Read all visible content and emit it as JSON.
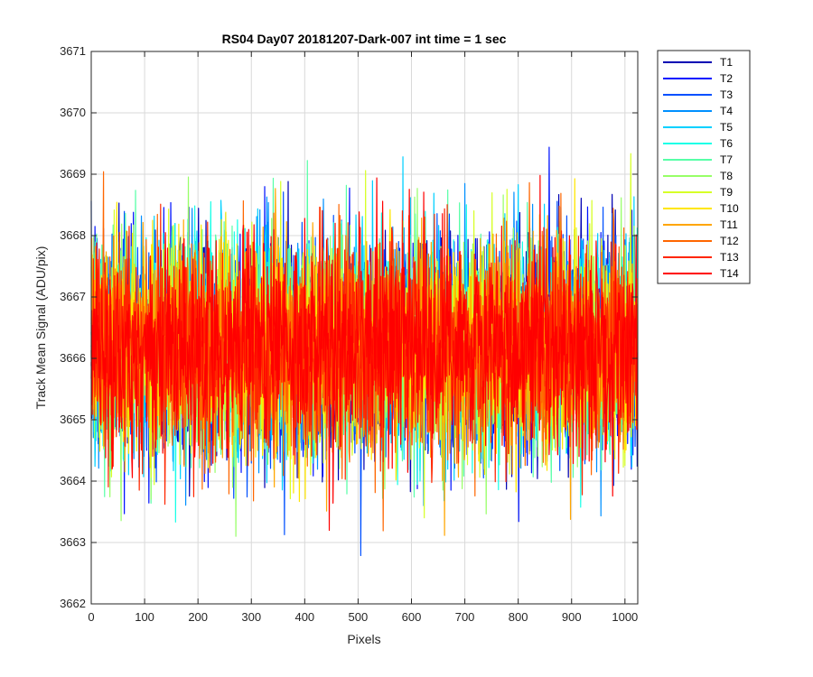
{
  "chart_data": {
    "type": "line",
    "title": "RS04 Day07 20181207-Dark-007 int time = 1 sec",
    "xlabel": "Pixels",
    "ylabel": "Track Mean Signal (ADU/pix)",
    "xlim": [
      0,
      1024
    ],
    "ylim": [
      3662,
      3671
    ],
    "xticks": [
      "0",
      "100",
      "200",
      "300",
      "400",
      "500",
      "600",
      "700",
      "800",
      "900",
      "1000"
    ],
    "yticks": [
      "3662",
      "3663",
      "3664",
      "3665",
      "3666",
      "3667",
      "3668",
      "3669",
      "3670",
      "3671"
    ],
    "grid": true,
    "legend_position": "outside-top-right",
    "series": [
      {
        "name": "T1",
        "color": "#0000b3",
        "mean": 3666.2,
        "sd": 0.85
      },
      {
        "name": "T2",
        "color": "#0013ff",
        "mean": 3666.2,
        "sd": 0.85
      },
      {
        "name": "T3",
        "color": "#0050ff",
        "mean": 3666.2,
        "sd": 0.85
      },
      {
        "name": "T4",
        "color": "#0090ff",
        "mean": 3666.2,
        "sd": 0.85
      },
      {
        "name": "T5",
        "color": "#00d0ff",
        "mean": 3666.2,
        "sd": 0.85
      },
      {
        "name": "T6",
        "color": "#17ffe7",
        "mean": 3666.2,
        "sd": 0.85
      },
      {
        "name": "T7",
        "color": "#57ffa7",
        "mean": 3666.2,
        "sd": 0.85
      },
      {
        "name": "T8",
        "color": "#97ff67",
        "mean": 3666.2,
        "sd": 0.85
      },
      {
        "name": "T9",
        "color": "#d7ff27",
        "mean": 3666.2,
        "sd": 0.85
      },
      {
        "name": "T10",
        "color": "#ffe600",
        "mean": 3666.2,
        "sd": 0.85
      },
      {
        "name": "T11",
        "color": "#ffa600",
        "mean": 3666.2,
        "sd": 0.85
      },
      {
        "name": "T12",
        "color": "#ff6600",
        "mean": 3666.2,
        "sd": 0.85
      },
      {
        "name": "T13",
        "color": "#ff2600",
        "mean": 3666.2,
        "sd": 0.85
      },
      {
        "name": "T14",
        "color": "#ff0000",
        "mean": 3666.2,
        "sd": 0.85
      }
    ]
  }
}
